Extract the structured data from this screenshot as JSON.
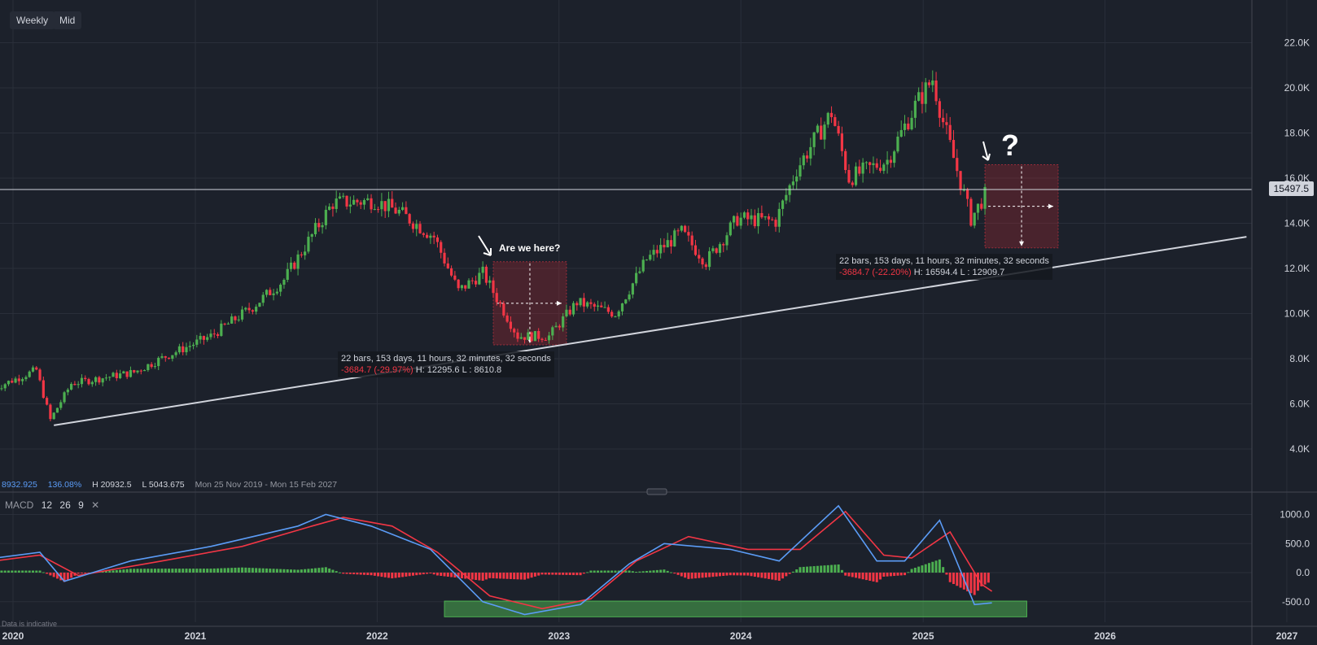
{
  "toolbar": {
    "interval": "Weekly",
    "price_type": "Mid"
  },
  "last_price": "15497.5",
  "info_bar": {
    "close": "8932.925",
    "change_pct": "136.08%",
    "high": "H 20932.5",
    "low": "L 5043.675",
    "range": "Mon 25 Nov 2019 - Mon 15 Feb 2027"
  },
  "macd": {
    "name": "MACD",
    "fast": "12",
    "slow": "26",
    "signal": "9"
  },
  "disclaimer": "Data is indicative",
  "annotations": {
    "question": "Are we here?",
    "question_mark": "?"
  },
  "measure1": {
    "line1": "22 bars, 153 days, 11 hours, 32 minutes, 32 seconds",
    "change": "-3684.7 (-29.97%)",
    "hl": "H: 12295.6 L : 8610.8"
  },
  "measure2": {
    "line1": "22 bars, 153 days, 11 hours, 32 minutes, 32 seconds",
    "change": "-3684.7 (-22.20%)",
    "hl": "H: 16594.4 L : 12909.7"
  },
  "colors": {
    "up": "#4caf50",
    "down": "#f23645",
    "macd": "#5b9cf6",
    "signal": "#f23645",
    "bg": "#1c212b"
  },
  "chart_data": {
    "type": "candlestick",
    "x_ticks": [
      "2020",
      "2021",
      "2022",
      "2023",
      "2024",
      "2025",
      "2026",
      "2027"
    ],
    "y_ticks": [
      "4.0K",
      "6.0K",
      "8.0K",
      "10.0K",
      "12.0K",
      "14.0K",
      "16.0K",
      "18.0K",
      "20.0K",
      "22.0K"
    ],
    "ylim": [
      2000,
      23500
    ],
    "close_path": [
      [
        "2019-11-25",
        6700
      ],
      [
        "2020-02-17",
        7500
      ],
      [
        "2020-03-16",
        5300
      ],
      [
        "2020-04-27",
        6900
      ],
      [
        "2020-08-31",
        7400
      ],
      [
        "2020-11-02",
        8100
      ],
      [
        "2021-02-01",
        9000
      ],
      [
        "2021-04-26",
        10300
      ],
      [
        "2021-06-28",
        11500
      ],
      [
        "2021-08-30",
        13700
      ],
      [
        "2021-10-04",
        14900
      ],
      [
        "2021-12-27",
        15000
      ],
      [
        "2022-02-14",
        14500
      ],
      [
        "2022-04-25",
        13400
      ],
      [
        "2022-06-13",
        11000
      ],
      [
        "2022-08-01",
        11800
      ],
      [
        "2022-10-10",
        9000
      ],
      [
        "2022-12-12",
        9000
      ],
      [
        "2023-02-06",
        10500
      ],
      [
        "2023-04-24",
        10000
      ],
      [
        "2023-06-26",
        12400
      ],
      [
        "2023-09-04",
        13600
      ],
      [
        "2023-10-23",
        12300
      ],
      [
        "2023-12-25",
        14200
      ],
      [
        "2024-03-11",
        14100
      ],
      [
        "2024-04-22",
        16400
      ],
      [
        "2024-07-01",
        18900
      ],
      [
        "2024-08-05",
        16000
      ],
      [
        "2024-10-21",
        16800
      ],
      [
        "2024-12-16",
        19200
      ],
      [
        "2025-01-20",
        20400
      ],
      [
        "2025-02-10",
        18500
      ],
      [
        "2025-04-07",
        14200
      ],
      [
        "2025-05-12",
        15500
      ]
    ],
    "trendline": [
      [
        "2020-03-23",
        5050
      ],
      [
        "2026-10-12",
        13400
      ]
    ],
    "horizontal_line": 15497.5,
    "macd_axis": {
      "ticks": [
        "1000.0",
        "500.0",
        "0.0",
        "-500.0"
      ],
      "ylim": [
        -800,
        1200
      ]
    },
    "macd_path": [
      [
        "2019-11-25",
        250
      ],
      [
        "2020-02-24",
        350
      ],
      [
        "2020-04-13",
        -150
      ],
      [
        "2020-08-24",
        200
      ],
      [
        "2021-02-01",
        450
      ],
      [
        "2021-07-26",
        800
      ],
      [
        "2021-09-20",
        1000
      ],
      [
        "2021-12-20",
        800
      ],
      [
        "2022-04-18",
        400
      ],
      [
        "2022-08-01",
        -500
      ],
      [
        "2022-10-24",
        -720
      ],
      [
        "2023-02-13",
        -550
      ],
      [
        "2023-05-22",
        150
      ],
      [
        "2023-07-31",
        500
      ],
      [
        "2023-12-11",
        400
      ],
      [
        "2024-03-18",
        200
      ],
      [
        "2024-07-15",
        1150
      ],
      [
        "2024-09-30",
        200
      ],
      [
        "2024-11-25",
        200
      ],
      [
        "2025-02-03",
        900
      ],
      [
        "2025-04-14",
        -550
      ],
      [
        "2025-05-19",
        -520
      ]
    ],
    "signal_path": [
      [
        "2019-11-25",
        200
      ],
      [
        "2020-02-24",
        300
      ],
      [
        "2020-05-11",
        -50
      ],
      [
        "2020-10-26",
        200
      ],
      [
        "2021-04-05",
        450
      ],
      [
        "2021-08-23",
        800
      ],
      [
        "2021-10-25",
        950
      ],
      [
        "2022-01-31",
        800
      ],
      [
        "2022-05-02",
        350
      ],
      [
        "2022-08-15",
        -400
      ],
      [
        "2022-11-28",
        -620
      ],
      [
        "2023-03-06",
        -450
      ],
      [
        "2023-06-05",
        200
      ],
      [
        "2023-09-18",
        620
      ],
      [
        "2024-01-15",
        400
      ],
      [
        "2024-04-29",
        400
      ],
      [
        "2024-07-29",
        1050
      ],
      [
        "2024-10-14",
        300
      ],
      [
        "2024-12-09",
        250
      ],
      [
        "2025-02-24",
        700
      ],
      [
        "2025-04-28",
        -200
      ],
      [
        "2025-05-19",
        -320
      ]
    ],
    "macd_zone": {
      "x0": "2022-05-16",
      "x1": "2025-07-28",
      "y0": -760,
      "y1": -490
    },
    "measure_box_1": {
      "x0": "2022-08-22",
      "x1": "2023-01-16",
      "high": 12295.6,
      "low": 8610.8
    },
    "measure_box_2": {
      "x0": "2025-05-05",
      "x1": "2025-09-29",
      "high": 16594.4,
      "low": 12909.7
    }
  }
}
